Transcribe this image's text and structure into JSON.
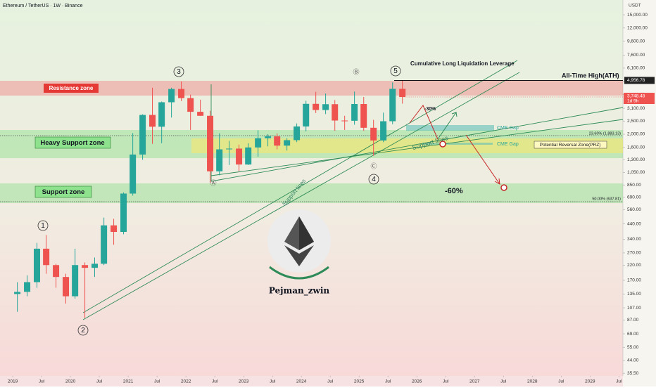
{
  "chart_data": {
    "type": "candlestick",
    "title": "Ethereum / TetherUS · 1W · Binance",
    "y_unit": "USDT",
    "log_scale": true,
    "grid": false,
    "up_color": "#26a69a",
    "down_color": "#ef5350",
    "x": [
      2019.08,
      2019.25,
      2019.42,
      2019.58,
      2019.75,
      2019.92,
      2020.08,
      2020.25,
      2020.42,
      2020.58,
      2020.75,
      2020.92,
      2021.08,
      2021.25,
      2021.42,
      2021.58,
      2021.75,
      2021.92,
      2022.08,
      2022.25,
      2022.42,
      2022.58,
      2022.75,
      2022.92,
      2023.08,
      2023.25,
      2023.42,
      2023.58,
      2023.75,
      2023.92,
      2024.08,
      2024.25,
      2024.42,
      2024.58,
      2024.75,
      2024.92,
      2025.08,
      2025.25,
      2025.42,
      2025.58,
      2025.75
    ],
    "open": [
      135,
      140,
      165,
      290,
      220,
      180,
      130,
      220,
      210,
      225,
      430,
      385,
      735,
      1420,
      2770,
      2270,
      3430,
      4290,
      3680,
      2920,
      2730,
      1070,
      1550,
      1570,
      1200,
      1600,
      1870,
      1930,
      1650,
      1810,
      2280,
      3340,
      3010,
      3320,
      2520,
      2510,
      3330,
      2230,
      1800,
      2490,
      4300
    ],
    "high": [
      165,
      185,
      320,
      365,
      225,
      190,
      290,
      230,
      250,
      490,
      480,
      750,
      2040,
      2800,
      4380,
      3470,
      4380,
      4870,
      3900,
      3580,
      2970,
      2030,
      1790,
      1680,
      1720,
      2140,
      2000,
      2030,
      1870,
      2400,
      3520,
      4090,
      3980,
      3560,
      2730,
      4110,
      3750,
      2550,
      2880,
      4800,
      4956
    ],
    "low": [
      100,
      130,
      150,
      190,
      150,
      115,
      125,
      90,
      180,
      220,
      310,
      370,
      710,
      1300,
      1700,
      1720,
      2650,
      3500,
      2150,
      2720,
      880,
      1000,
      1190,
      1070,
      1190,
      1370,
      1630,
      1550,
      1520,
      1750,
      2100,
      2860,
      2810,
      2120,
      2150,
      2350,
      2120,
      1390,
      1750,
      2370,
      3350
    ],
    "close": [
      140,
      165,
      290,
      220,
      180,
      130,
      220,
      210,
      225,
      430,
      385,
      735,
      1420,
      2770,
      2270,
      3430,
      4290,
      3680,
      2920,
      2730,
      1070,
      1550,
      1570,
      1200,
      1600,
      1870,
      1930,
      1650,
      1810,
      2280,
      3340,
      3010,
      3320,
      2520,
      2510,
      3330,
      2230,
      1800,
      2490,
      4300,
      3748
    ],
    "xlim": [
      2018.78,
      2029.57
    ],
    "ylim": [
      33.9,
      19250
    ],
    "xticks": [
      2019,
      {
        "value": 2019.5,
        "label": "Jul"
      },
      2020,
      {
        "value": 2020.5,
        "label": "Jul"
      },
      2021,
      {
        "value": 2021.5,
        "label": "Jul"
      },
      2022,
      {
        "value": 2022.5,
        "label": "Jul"
      },
      2023,
      {
        "value": 2023.5,
        "label": "Jul"
      },
      2024,
      {
        "value": 2024.5,
        "label": "Jul"
      },
      2025,
      {
        "value": 2025.5,
        "label": "Jul"
      },
      2026,
      {
        "value": 2026.5,
        "label": "Jul"
      },
      2027,
      {
        "value": 2027.5,
        "label": "Jul"
      },
      2028,
      {
        "value": 2028.5,
        "label": "Jul"
      },
      2029,
      {
        "value": 2029.5,
        "label": "Jul"
      }
    ],
    "yticks": [
      {
        "value": 15000,
        "label": "15,000.00"
      },
      {
        "value": 12000,
        "label": "12,000.00"
      },
      {
        "value": 9600,
        "label": "9,600.00"
      },
      {
        "value": 7600,
        "label": "7,600.00"
      },
      {
        "value": 6100,
        "label": "6,100.00"
      },
      {
        "value": 4900,
        "label": "4,900.00"
      },
      {
        "value": 3900,
        "label": "3,900.00"
      },
      {
        "value": 3100,
        "label": "3,100.00"
      },
      {
        "value": 2500,
        "label": "2,500.00"
      },
      {
        "value": 2000,
        "label": "2,000.00"
      },
      {
        "value": 1600,
        "label": "1,600.00"
      },
      {
        "value": 1300,
        "label": "1,300.00"
      },
      {
        "value": 1050,
        "label": "1,050.00"
      },
      {
        "value": 850,
        "label": "850.00"
      },
      {
        "value": 690,
        "label": "690.00"
      },
      {
        "value": 560,
        "label": "560.00"
      },
      {
        "value": 440,
        "label": "440.00"
      },
      {
        "value": 340,
        "label": "340.00"
      },
      {
        "value": 270,
        "label": "270.00"
      },
      {
        "value": 220,
        "label": "220.00"
      },
      {
        "value": 170,
        "label": "170.00"
      },
      {
        "value": 135,
        "label": "135.00"
      },
      {
        "value": 107,
        "label": "107.00"
      },
      {
        "value": 87,
        "label": "87.00"
      },
      {
        "value": 69,
        "label": "69.00"
      },
      {
        "value": 55,
        "label": "55.00"
      },
      {
        "value": 44,
        "label": "44.00"
      },
      {
        "value": 35.5,
        "label": "35.50"
      }
    ],
    "last_price": {
      "value": 3748.48,
      "label": "3,748.48",
      "countdown": "1d 9h"
    },
    "ath": {
      "value": 4956.78,
      "label": "4,956.78",
      "text": "All-Time High(ATH)"
    },
    "annotations": {
      "resistance_zone": "Resistance zone",
      "heavy_support_zone": "Heavy Support zone",
      "support_zone": "Support zone",
      "leverage": "Cumulative Long Liquidation Leverage",
      "cme_gap_1": "CME Gap",
      "cme_gap_2": "CME Gap",
      "prz": "Potential Reversal Zone(PRZ)",
      "fib_236": "23.60% (1,883.13)",
      "fib_50": "50.00% (637.81)",
      "support_lines_1": "Support lines",
      "support_lines_2": "Support lines",
      "drop_30": "-30%",
      "drop_60": "-60%",
      "waves": [
        "1",
        "2",
        "3",
        "4",
        "5",
        "Ⓐ",
        "Ⓑ",
        "Ⓒ"
      ],
      "author": "Pejman_zwin"
    }
  }
}
